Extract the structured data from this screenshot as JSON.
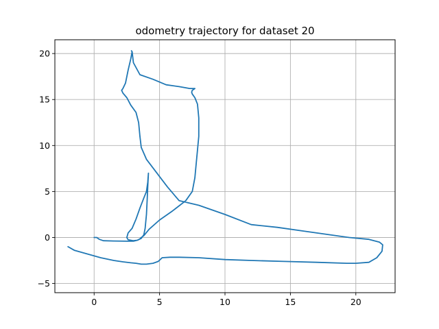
{
  "chart_data": {
    "type": "line",
    "title": "odometry trajectory for dataset 20",
    "xlabel": "",
    "ylabel": "",
    "xlim": [
      -3.0,
      23.0
    ],
    "ylim": [
      -6.0,
      21.5
    ],
    "xticks": [
      0,
      5,
      10,
      15,
      20
    ],
    "yticks": [
      -5,
      0,
      5,
      10,
      15,
      20
    ],
    "grid": true,
    "legend": "none",
    "color": "#1f77b4",
    "series": [
      {
        "x": [
          0.0,
          0.2,
          0.4,
          0.7,
          1.5,
          2.5,
          3.0,
          3.3,
          3.6,
          3.8,
          3.9,
          4.0,
          4.05,
          4.1,
          4.15,
          4.1,
          4.0,
          3.8,
          3.5,
          3.2,
          2.9,
          2.6,
          2.5,
          2.6,
          2.8,
          3.0,
          3.3,
          3.5,
          3.6,
          3.8,
          4.2,
          5.0,
          6.0,
          7.0,
          7.5,
          7.7,
          7.8,
          7.9,
          8.0,
          8.0,
          7.9,
          7.7,
          7.5,
          7.45,
          7.5,
          7.6,
          7.7,
          7.3,
          6.5,
          5.5,
          4.5,
          3.5,
          3.0,
          2.9,
          2.85,
          2.9,
          2.8,
          2.6,
          2.4,
          2.2,
          2.1,
          2.2,
          2.5,
          2.8,
          3.2,
          3.4,
          3.5,
          3.6,
          4.0,
          4.8,
          5.6,
          6.5,
          8.0,
          10.0,
          12.0,
          14.0,
          16.0,
          18.0,
          19.5,
          21.0,
          21.8,
          22.05,
          22.0,
          21.6,
          21.0,
          20.0,
          19.3,
          17.0,
          14.5,
          12.0,
          10.0,
          8.0,
          6.5,
          5.8,
          5.2,
          4.9,
          4.5,
          4.0,
          3.6,
          3.2,
          2.8,
          2.2,
          1.5,
          0.5,
          -0.5,
          -1.5,
          -2.0
        ],
        "y": [
          0.0,
          0.0,
          -0.2,
          -0.35,
          -0.38,
          -0.4,
          -0.4,
          -0.3,
          -0.1,
          0.3,
          1.0,
          2.5,
          4.0,
          5.5,
          7.0,
          6.0,
          5.0,
          4.3,
          3.2,
          2.0,
          1.0,
          0.5,
          0.0,
          -0.25,
          -0.3,
          -0.35,
          -0.3,
          -0.15,
          0.0,
          0.2,
          0.9,
          1.9,
          2.9,
          4.0,
          5.0,
          6.5,
          8.0,
          9.5,
          11.0,
          13.0,
          14.5,
          15.2,
          15.6,
          15.8,
          16.0,
          16.1,
          16.2,
          16.2,
          16.4,
          16.6,
          17.2,
          17.7,
          19.0,
          20.2,
          20.3,
          20.2,
          19.4,
          18.2,
          16.8,
          16.2,
          16.0,
          15.7,
          15.2,
          14.4,
          13.6,
          12.5,
          11.0,
          9.8,
          8.5,
          7.0,
          5.5,
          4.0,
          3.5,
          2.5,
          1.4,
          1.1,
          0.7,
          0.3,
          0.0,
          -0.2,
          -0.5,
          -0.8,
          -1.5,
          -2.2,
          -2.7,
          -2.8,
          -2.8,
          -2.7,
          -2.6,
          -2.5,
          -2.4,
          -2.2,
          -2.15,
          -2.15,
          -2.2,
          -2.6,
          -2.8,
          -2.9,
          -2.9,
          -2.8,
          -2.75,
          -2.65,
          -2.5,
          -2.2,
          -1.8,
          -1.4,
          -1.0
        ],
        "closed_note": ""
      }
    ]
  }
}
